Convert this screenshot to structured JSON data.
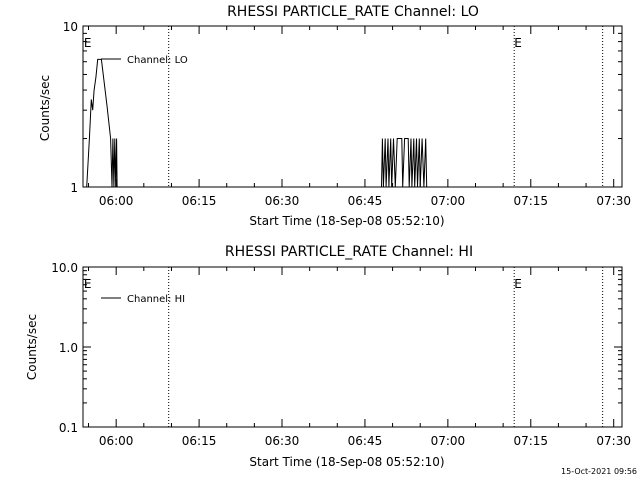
{
  "footer_timestamp": "15-Oct-2021 09:56",
  "chart_data": [
    {
      "type": "line",
      "title": "RHESSI PARTICLE_RATE Channel: LO",
      "xlabel": "Start Time (18-Sep-08 05:52:10)",
      "ylabel": "Counts/sec",
      "yscale": "log",
      "xlim": [
        "05:54:00",
        "07:31:30"
      ],
      "ylim": [
        1,
        10
      ],
      "xticks": [
        "06:00",
        "06:15",
        "06:30",
        "06:45",
        "07:00",
        "07:15",
        "07:30"
      ],
      "yticks": [
        "1",
        "10"
      ],
      "markers": [
        {
          "label": "E",
          "time": "05:54:10"
        },
        {
          "label": "E",
          "time": "07:12:00"
        }
      ],
      "vlines": [
        "06:09:30",
        "07:12:00",
        "07:28:00"
      ],
      "grid": false,
      "legend_position": "top-left",
      "series": [
        {
          "name": "Channel: LO",
          "points": [
            [
              "05:54:40",
              1
            ],
            [
              "05:55:10",
              2
            ],
            [
              "05:55:30",
              3.5
            ],
            [
              "05:55:45",
              3
            ],
            [
              "05:56:00",
              4
            ],
            [
              "05:56:20",
              4.8
            ],
            [
              "05:56:40",
              6.2
            ],
            [
              "05:57:20",
              6.2
            ],
            [
              "05:58:20",
              3.2
            ],
            [
              "05:59:00",
              2
            ],
            [
              "05:59:15",
              1
            ],
            [
              "05:59:25",
              2
            ],
            [
              "05:59:35",
              1
            ],
            [
              "05:59:45",
              2
            ],
            [
              "05:59:55",
              1
            ],
            [
              "06:00:05",
              2
            ],
            [
              "06:00:10",
              1
            ],
            [
              "06:48:00",
              1
            ],
            [
              "06:48:10",
              2
            ],
            [
              "06:48:20",
              1
            ],
            [
              "06:48:40",
              2
            ],
            [
              "06:48:50",
              1
            ],
            [
              "06:49:10",
              2
            ],
            [
              "06:49:20",
              1
            ],
            [
              "06:49:40",
              2
            ],
            [
              "06:49:50",
              1
            ],
            [
              "06:50:10",
              2
            ],
            [
              "06:50:30",
              1
            ],
            [
              "06:50:50",
              2
            ],
            [
              "06:51:40",
              2
            ],
            [
              "06:51:50",
              1
            ],
            [
              "06:52:10",
              2
            ],
            [
              "06:52:50",
              2
            ],
            [
              "06:53:00",
              1
            ],
            [
              "06:53:20",
              2
            ],
            [
              "06:53:30",
              1
            ],
            [
              "06:53:50",
              2
            ],
            [
              "06:54:00",
              1
            ],
            [
              "06:54:20",
              2
            ],
            [
              "06:54:30",
              1
            ],
            [
              "06:54:50",
              2
            ],
            [
              "06:55:00",
              1
            ],
            [
              "06:55:20",
              2
            ],
            [
              "06:55:40",
              1
            ],
            [
              "06:56:00",
              2
            ],
            [
              "06:56:10",
              1
            ]
          ]
        }
      ]
    },
    {
      "type": "line",
      "title": "RHESSI PARTICLE_RATE Channel: HI",
      "xlabel": "Start Time (18-Sep-08 05:52:10)",
      "ylabel": "Counts/sec",
      "yscale": "log",
      "xlim": [
        "05:54:00",
        "07:31:30"
      ],
      "ylim": [
        0.1,
        10
      ],
      "xticks": [
        "06:00",
        "06:15",
        "06:30",
        "06:45",
        "07:00",
        "07:15",
        "07:30"
      ],
      "yticks": [
        "0.1",
        "1.0",
        "10.0"
      ],
      "markers": [
        {
          "label": "E",
          "time": "05:54:10"
        },
        {
          "label": "E",
          "time": "07:12:00"
        }
      ],
      "vlines": [
        "06:09:30",
        "07:12:00",
        "07:28:00"
      ],
      "grid": false,
      "legend_position": "top-left",
      "series": [
        {
          "name": "Channel: HI",
          "points": []
        }
      ]
    }
  ]
}
